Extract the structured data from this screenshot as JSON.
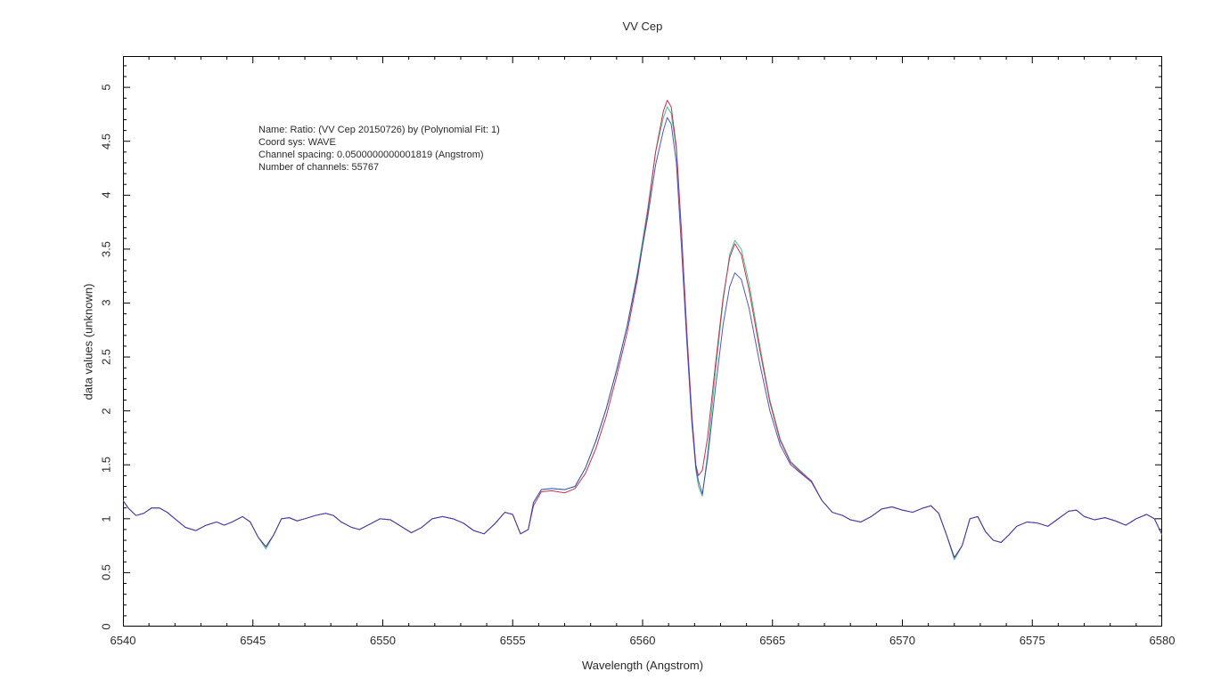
{
  "window": {
    "title": "VV Cep"
  },
  "chart_data": {
    "type": "line",
    "title": "VV Cep",
    "xlabel": "Wavelength (Angstrom)",
    "ylabel": "data values (unknown)",
    "xlim": [
      6540,
      6580
    ],
    "ylim": [
      0,
      5.29
    ],
    "x_major_ticks": [
      6540,
      6545,
      6550,
      6555,
      6560,
      6565,
      6570,
      6575,
      6580
    ],
    "x_minor_step": 1,
    "y_major_ticks": [
      0,
      0.5,
      1,
      1.5,
      2,
      2.5,
      3,
      3.5,
      4,
      4.5,
      5
    ],
    "y_minor_step": 0.1,
    "grid": false,
    "legend_position": "none",
    "annotation_lines": [
      "Name: Ratio: (VV Cep 20150726) by (Polynomial Fit: 1)",
      "Coord sys: WAVE",
      "Channel spacing: 0.0500000000001819 (Angstrom)",
      "Number of channels: 55767"
    ],
    "x": [
      6540.0,
      6540.2,
      6540.5,
      6540.8,
      6541.1,
      6541.4,
      6541.7,
      6542.0,
      6542.4,
      6542.8,
      6543.2,
      6543.6,
      6543.9,
      6544.2,
      6544.6,
      6544.9,
      6545.2,
      6545.5,
      6545.8,
      6546.1,
      6546.4,
      6546.7,
      6547.0,
      6547.4,
      6547.8,
      6548.1,
      6548.4,
      6548.8,
      6549.1,
      6549.5,
      6549.9,
      6550.3,
      6550.7,
      6551.1,
      6551.5,
      6551.9,
      6552.3,
      6552.7,
      6553.1,
      6553.5,
      6553.9,
      6554.3,
      6554.7,
      6555.0,
      6555.3,
      6555.6,
      6555.8,
      6556.1,
      6556.5,
      6557.0,
      6557.4,
      6557.8,
      6558.2,
      6558.6,
      6559.0,
      6559.4,
      6559.8,
      6560.2,
      6560.5,
      6560.8,
      6560.95,
      6561.1,
      6561.3,
      6561.5,
      6561.7,
      6561.9,
      6562.05,
      6562.15,
      6562.3,
      6562.5,
      6562.8,
      6563.1,
      6563.35,
      6563.55,
      6563.8,
      6564.1,
      6564.5,
      6564.9,
      6565.3,
      6565.7,
      6566.1,
      6566.5,
      6566.9,
      6567.3,
      6567.7,
      6568.0,
      6568.4,
      6568.8,
      6569.2,
      6569.6,
      6570.0,
      6570.4,
      6570.8,
      6571.1,
      6571.4,
      6571.7,
      6572.0,
      6572.3,
      6572.6,
      6572.9,
      6573.2,
      6573.5,
      6573.8,
      6574.1,
      6574.4,
      6574.8,
      6575.2,
      6575.6,
      6576.0,
      6576.4,
      6576.7,
      6577.0,
      6577.4,
      6577.8,
      6578.2,
      6578.6,
      6579.0,
      6579.4,
      6579.7,
      6580.0
    ],
    "series": [
      {
        "name": "spectrum-red",
        "color": "#c23352",
        "values": [
          1.17,
          1.1,
          1.03,
          1.05,
          1.1,
          1.1,
          1.06,
          1.0,
          0.92,
          0.89,
          0.94,
          0.97,
          0.94,
          0.97,
          1.02,
          0.97,
          0.83,
          0.74,
          0.85,
          1.0,
          1.01,
          0.98,
          1.0,
          1.03,
          1.05,
          1.03,
          0.97,
          0.92,
          0.9,
          0.95,
          1.0,
          0.99,
          0.93,
          0.87,
          0.92,
          1.0,
          1.02,
          1.0,
          0.96,
          0.89,
          0.86,
          0.95,
          1.06,
          1.04,
          0.86,
          0.9,
          1.12,
          1.25,
          1.26,
          1.24,
          1.28,
          1.42,
          1.65,
          1.95,
          2.32,
          2.72,
          3.22,
          3.85,
          4.4,
          4.78,
          4.88,
          4.82,
          4.45,
          3.65,
          2.75,
          1.95,
          1.5,
          1.4,
          1.45,
          1.75,
          2.42,
          3.05,
          3.42,
          3.55,
          3.45,
          3.12,
          2.58,
          2.08,
          1.72,
          1.52,
          1.43,
          1.35,
          1.17,
          1.06,
          1.03,
          0.99,
          0.97,
          1.02,
          1.09,
          1.11,
          1.08,
          1.06,
          1.1,
          1.12,
          1.05,
          0.85,
          0.64,
          0.75,
          1.0,
          1.02,
          0.88,
          0.8,
          0.78,
          0.85,
          0.93,
          0.97,
          0.96,
          0.93,
          1.0,
          1.07,
          1.08,
          1.02,
          0.99,
          1.01,
          0.98,
          0.94,
          1.0,
          1.04,
          1.0,
          0.85
        ]
      },
      {
        "name": "spectrum-green",
        "color": "#4cc08a",
        "values": [
          1.17,
          1.1,
          1.03,
          1.05,
          1.1,
          1.1,
          1.06,
          1.0,
          0.92,
          0.89,
          0.94,
          0.97,
          0.94,
          0.97,
          1.02,
          0.97,
          0.83,
          0.72,
          0.85,
          1.0,
          1.01,
          0.98,
          1.0,
          1.03,
          1.05,
          1.03,
          0.97,
          0.92,
          0.9,
          0.95,
          1.0,
          0.99,
          0.93,
          0.87,
          0.92,
          1.0,
          1.02,
          1.0,
          0.96,
          0.89,
          0.86,
          0.95,
          1.06,
          1.04,
          0.86,
          0.9,
          1.15,
          1.27,
          1.28,
          1.27,
          1.3,
          1.47,
          1.72,
          2.02,
          2.38,
          2.78,
          3.28,
          3.88,
          4.4,
          4.72,
          4.82,
          4.76,
          4.42,
          3.65,
          2.72,
          1.9,
          1.45,
          1.3,
          1.21,
          1.6,
          2.35,
          3.02,
          3.45,
          3.58,
          3.5,
          3.18,
          2.62,
          2.1,
          1.74,
          1.53,
          1.44,
          1.35,
          1.17,
          1.06,
          1.03,
          0.99,
          0.97,
          1.02,
          1.09,
          1.11,
          1.08,
          1.06,
          1.1,
          1.12,
          1.05,
          0.85,
          0.62,
          0.75,
          1.0,
          1.02,
          0.88,
          0.8,
          0.78,
          0.85,
          0.93,
          0.97,
          0.96,
          0.93,
          1.0,
          1.07,
          1.08,
          1.02,
          0.99,
          1.01,
          0.98,
          0.94,
          1.0,
          1.04,
          1.0,
          0.85
        ]
      },
      {
        "name": "spectrum-blue",
        "color": "#3238c0",
        "values": [
          1.17,
          1.1,
          1.03,
          1.05,
          1.1,
          1.1,
          1.06,
          1.0,
          0.92,
          0.89,
          0.94,
          0.97,
          0.94,
          0.97,
          1.02,
          0.97,
          0.83,
          0.74,
          0.85,
          1.0,
          1.01,
          0.98,
          1.0,
          1.03,
          1.05,
          1.03,
          0.97,
          0.92,
          0.9,
          0.95,
          1.0,
          0.99,
          0.93,
          0.87,
          0.92,
          1.0,
          1.02,
          1.0,
          0.96,
          0.89,
          0.86,
          0.95,
          1.06,
          1.04,
          0.86,
          0.9,
          1.15,
          1.27,
          1.28,
          1.27,
          1.3,
          1.47,
          1.72,
          2.02,
          2.38,
          2.78,
          3.26,
          3.8,
          4.28,
          4.6,
          4.72,
          4.66,
          4.3,
          3.5,
          2.65,
          1.88,
          1.48,
          1.35,
          1.23,
          1.55,
          2.2,
          2.8,
          3.15,
          3.28,
          3.22,
          2.95,
          2.45,
          2.0,
          1.68,
          1.5,
          1.42,
          1.34,
          1.17,
          1.06,
          1.03,
          0.99,
          0.97,
          1.02,
          1.09,
          1.11,
          1.08,
          1.06,
          1.1,
          1.12,
          1.05,
          0.85,
          0.64,
          0.75,
          1.0,
          1.02,
          0.88,
          0.8,
          0.78,
          0.85,
          0.93,
          0.97,
          0.96,
          0.93,
          1.0,
          1.07,
          1.08,
          1.02,
          0.99,
          1.01,
          0.98,
          0.94,
          1.0,
          1.04,
          1.0,
          0.85
        ]
      }
    ]
  }
}
